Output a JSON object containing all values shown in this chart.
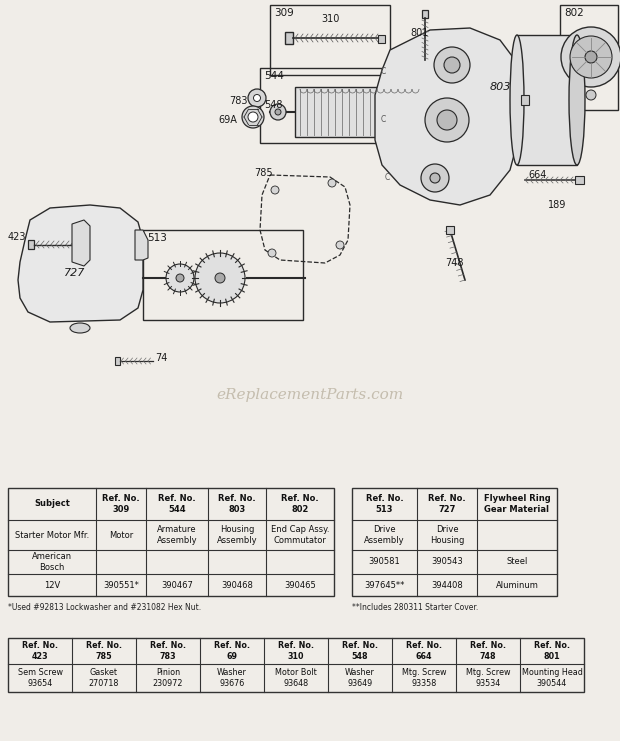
{
  "bg_color": "#f0ede8",
  "watermark": "eReplacementParts.com",
  "table1_headers": [
    "Subject",
    "Ref. No.\n309",
    "Ref. No.\n544",
    "Ref. No.\n803",
    "Ref. No.\n802"
  ],
  "table1_rows": [
    [
      "Starter Motor Mfr.",
      "Motor",
      "Armature\nAssembly",
      "Housing\nAssembly",
      "End Cap Assy.\nCommutator"
    ],
    [
      "American\nBosch",
      "",
      "",
      "",
      ""
    ],
    [
      "12V",
      "390551*",
      "390467",
      "390468",
      "390465"
    ]
  ],
  "table1_footnote": "*Used #92813 Lockwasher and #231082 Hex Nut.",
  "table2_headers": [
    "Ref. No.\n513",
    "Ref. No.\n727",
    "Flywheel Ring\nGear Material"
  ],
  "table2_rows": [
    [
      "Drive\nAssembly",
      "Drive\nHousing",
      ""
    ],
    [
      "390581",
      "390543",
      "Steel"
    ],
    [
      "397645**",
      "394408",
      "Aluminum"
    ]
  ],
  "table2_footnote": "**Includes 280311 Starter Cover.",
  "table3_headers": [
    "Ref. No.\n423",
    "Ref. No.\n785",
    "Ref. No.\n783",
    "Ref. No.\n69",
    "Ref. No.\n310",
    "Ref. No.\n548",
    "Ref. No.\n664",
    "Ref. No.\n748",
    "Ref. No.\n801"
  ],
  "table3_rows": [
    [
      "Sem Screw\n93654",
      "Gasket\n270718",
      "Pinion\n230972",
      "Washer\n93676",
      "Motor Bolt\n93648",
      "Washer\n93649",
      "Mtg. Screw\n93358",
      "Mtg. Screw\n93534",
      "Mounting Head\n390544"
    ]
  ]
}
